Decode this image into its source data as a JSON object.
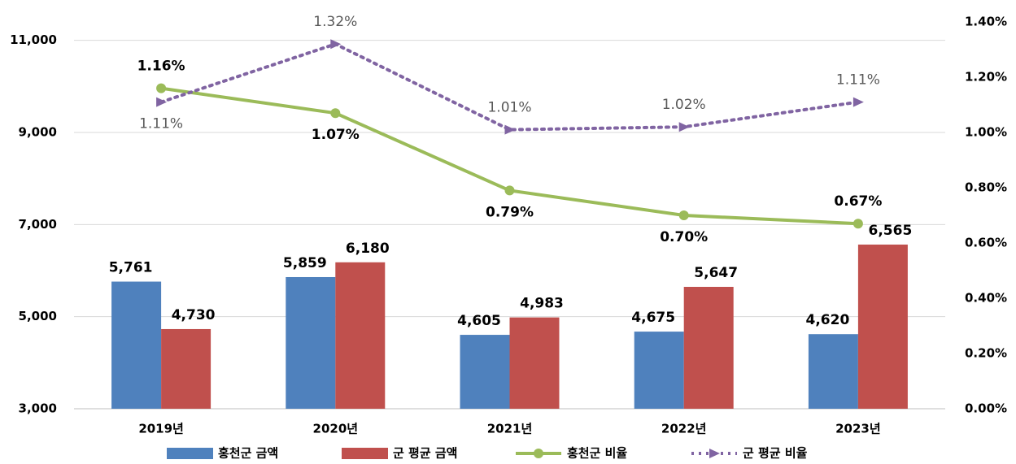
{
  "chart_data": {
    "type": "bar-line",
    "categories": [
      "2019년",
      "2020년",
      "2021년",
      "2022년",
      "2023년"
    ],
    "series": [
      {
        "name": "홍천군 금액",
        "type": "bar",
        "color": "#4f81bd",
        "values": [
          5761,
          5859,
          4605,
          4675,
          4620
        ],
        "value_labels": [
          "5,761",
          "5,859",
          "4,605",
          "4,675",
          "4,620"
        ]
      },
      {
        "name": "군 평균 금액",
        "type": "bar",
        "color": "#c0504d",
        "values": [
          4730,
          6180,
          4983,
          5647,
          6565
        ],
        "value_labels": [
          "4,730",
          "6,180",
          "4,983",
          "5,647",
          "6,565"
        ]
      },
      {
        "name": "홍천군 비율",
        "type": "line",
        "axis": "y2",
        "color": "#9bbb59",
        "marker": "circle",
        "values": [
          1.16,
          1.07,
          0.79,
          0.7,
          0.67
        ],
        "value_labels": [
          "1.16%",
          "1.07%",
          "0.79%",
          "0.70%",
          "0.67%"
        ]
      },
      {
        "name": "군 평균 비율",
        "type": "line",
        "axis": "y2",
        "color": "#8064a2",
        "dash": "dotted",
        "marker": "arrow",
        "values": [
          1.11,
          1.32,
          1.01,
          1.02,
          1.11
        ],
        "value_labels": [
          "1.11%",
          "1.32%",
          "1.01%",
          "1.02%",
          "1.11%"
        ]
      }
    ],
    "ylim": [
      3000,
      11400
    ],
    "yticks": [
      {
        "value": 3000,
        "label": "3,000"
      },
      {
        "value": 5000,
        "label": "5,000"
      },
      {
        "value": 7000,
        "label": "7,000"
      },
      {
        "value": 9000,
        "label": "9,000"
      },
      {
        "value": 11000,
        "label": "11,000"
      }
    ],
    "y2lim": [
      0,
      1.4
    ],
    "y2ticks": [
      {
        "value": 0,
        "label": "0.00%"
      },
      {
        "value": 0.2,
        "label": "0.20%"
      },
      {
        "value": 0.4,
        "label": "0.40%"
      },
      {
        "value": 0.6,
        "label": "0.60%"
      },
      {
        "value": 0.8,
        "label": "0.80%"
      },
      {
        "value": 1.0,
        "label": "1.00%"
      },
      {
        "value": 1.2,
        "label": "1.20%"
      },
      {
        "value": 1.4,
        "label": "1.40%"
      }
    ],
    "grid": true,
    "legend": "bottom"
  }
}
